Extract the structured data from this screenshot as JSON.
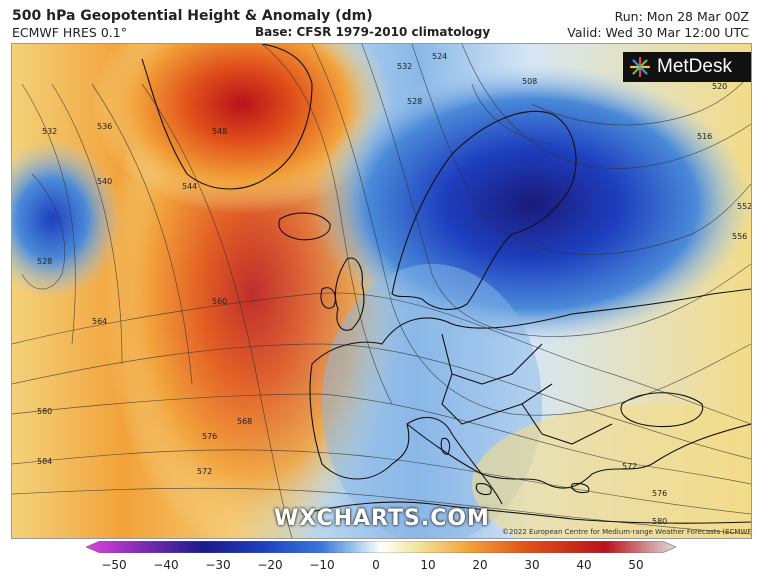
{
  "header": {
    "title": "500 hPa Geopotential Height & Anomaly (dm)",
    "model": "ECMWF HRES 0.1°",
    "base": "Base: CFSR 1979-2010 climatology",
    "run": "Run: Mon 28 Mar 00Z",
    "valid": "Valid: Wed 30 Mar 12:00 UTC"
  },
  "logo": {
    "text": "MetDesk"
  },
  "watermark": "WXCHARTS.COM",
  "copyright": "©2022 European Centre for Medium-range Weather Forecasts (ECMWF)",
  "colorbar": {
    "ticks": [
      "−50",
      "−40",
      "−30",
      "−20",
      "−10",
      "0",
      "10",
      "20",
      "30",
      "40",
      "50"
    ],
    "colors": [
      "#e040e0",
      "#5a1a9a",
      "#1a1a8a",
      "#1e3fc0",
      "#3a78d8",
      "#a8cdee",
      "#ffffff",
      "#f3e6a0",
      "#f2a23a",
      "#e0501a",
      "#b8121a"
    ]
  },
  "contour_labels": [
    {
      "text": "536"
    },
    {
      "text": "540"
    },
    {
      "text": "544"
    },
    {
      "text": "548"
    },
    {
      "text": "532"
    },
    {
      "text": "524"
    },
    {
      "text": "528"
    },
    {
      "text": "508"
    },
    {
      "text": "516"
    },
    {
      "text": "520"
    },
    {
      "text": "552"
    },
    {
      "text": "556"
    },
    {
      "text": "560"
    },
    {
      "text": "564"
    },
    {
      "text": "568"
    },
    {
      "text": "572"
    },
    {
      "text": "576"
    },
    {
      "text": "580"
    },
    {
      "text": "584"
    },
    {
      "text": "572"
    },
    {
      "text": "576"
    },
    {
      "text": "580"
    },
    {
      "text": "528"
    },
    {
      "text": "532"
    }
  ]
}
